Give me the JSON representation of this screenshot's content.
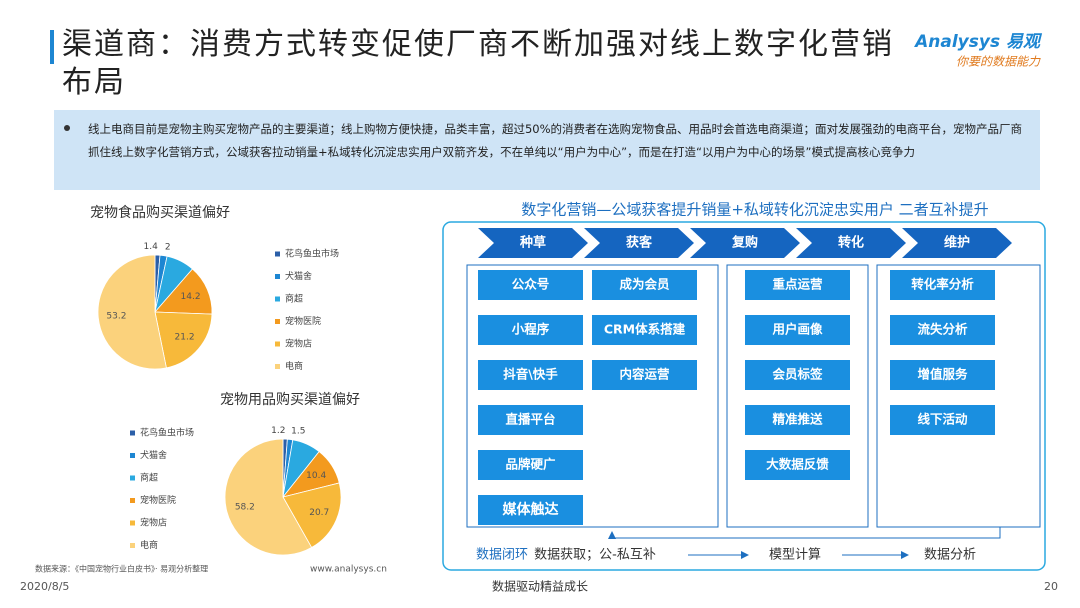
{
  "header": {
    "title": "渠道商：消费方式转变促使厂商不断加强对线上数字化营销布局",
    "logo": "Analysys 易观",
    "logo_slogan": "你要的数据能力"
  },
  "summary": "线上电商目前是宠物主购买宠物产品的主要渠道；线上购物方便快捷，品类丰富，超过50%的消费者在选购宠物食品、用品时会首选电商渠道；面对发展强劲的电商平台，宠物产品厂商抓住线上数字化营销方式，公域获客拉动销量+私域转化沉淀忠实用户双箭齐发，不在单纯以“用户为中心”，而是在打造“以用户为中心的场景”模式提高核心竞争力",
  "chart_data": [
    {
      "type": "pie",
      "title": "宠物食品购买渠道偏好",
      "categories": [
        "花鸟鱼虫市场",
        "犬猫舍",
        "商超",
        "宠物医院",
        "宠物店",
        "电商"
      ],
      "values": [
        1.4,
        2,
        8,
        14.2,
        21.2,
        53.2
      ],
      "value_labels": [
        "1.4",
        "2",
        null,
        "14.2",
        "21.2",
        "53.2"
      ],
      "colors": [
        "#2b5fa8",
        "#1d86d2",
        "#2aa9e0",
        "#f39a1e",
        "#f7b93a",
        "#fbd27c"
      ],
      "legend": "right"
    },
    {
      "type": "pie",
      "title": "宠物用品购买渠道偏好",
      "categories": [
        "花鸟鱼虫市场",
        "犬猫舍",
        "商超",
        "宠物医院",
        "宠物店",
        "电商"
      ],
      "values": [
        1.2,
        1.5,
        8,
        10.4,
        20.7,
        58.2
      ],
      "value_labels": [
        "1.2",
        "1.5",
        null,
        "10.4",
        "20.7",
        "58.2"
      ],
      "colors": [
        "#2b5fa8",
        "#1d86d2",
        "#2aa9e0",
        "#f39a1e",
        "#f7b93a",
        "#fbd27c"
      ],
      "legend": "left"
    }
  ],
  "diagram": {
    "title": "数字化营销—公域获客提升销量+私域转化沉淀忠实用户 二者互补提升",
    "stages": [
      "种草",
      "获客",
      "复购",
      "转化",
      "维护"
    ],
    "columns": [
      [
        "公众号",
        "小程序",
        "抖音\\快手",
        "直播平台",
        "品牌硬广",
        "媒体触达"
      ],
      [
        "成为会员",
        "CRM体系搭建",
        "内容运营"
      ],
      [
        "重点运营",
        "用户画像",
        "会员标签",
        "精准推送",
        "大数据反馈"
      ],
      [
        "转化率分析",
        "流失分析",
        "增值服务",
        "线下活动"
      ]
    ],
    "loop_label": "数据闭环",
    "loop_steps": [
      "数据获取；公-私互补",
      "模型计算",
      "数据分析"
    ]
  },
  "footer": {
    "source": "数据来源：《中国宠物行业白皮书》· 易观分析整理",
    "site": "www.analysys.cn",
    "date": "2020/8/5",
    "slogan": "数据驱动精益成长",
    "page": "20"
  }
}
